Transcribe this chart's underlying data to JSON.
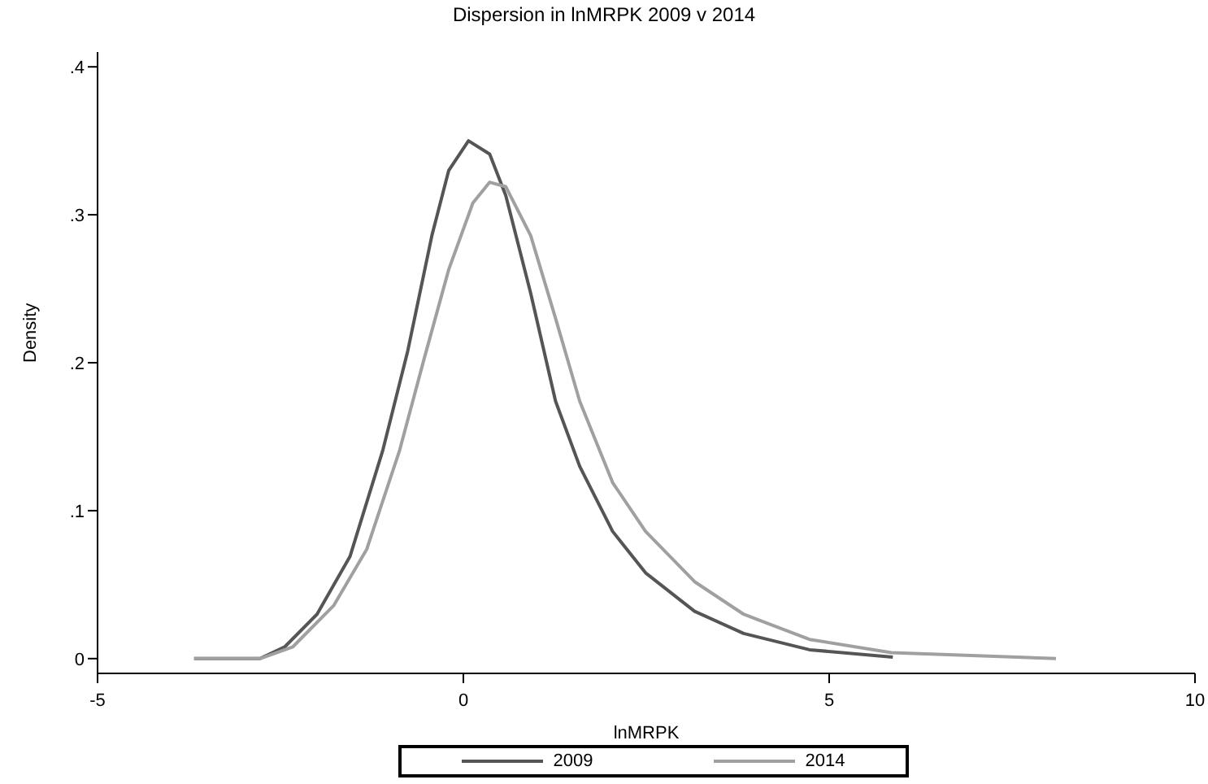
{
  "chart_data": {
    "type": "line",
    "title": "Dispersion in lnMRPK 2009 v 2014",
    "xlabel": "lnMRPK",
    "ylabel": "Density",
    "series": [
      {
        "name": "2009",
        "color": "#555555",
        "x": [
          -3.68,
          -2.78,
          -2.44,
          -2.0,
          -1.55,
          -1.1,
          -0.76,
          -0.43,
          -0.2,
          0.07,
          0.36,
          0.58,
          0.92,
          1.26,
          1.59,
          2.04,
          2.49,
          3.16,
          3.83,
          4.73,
          5.87
        ],
        "values": [
          0,
          0,
          0.008,
          0.03,
          0.069,
          0.141,
          0.208,
          0.286,
          0.33,
          0.35,
          0.341,
          0.313,
          0.247,
          0.174,
          0.13,
          0.086,
          0.058,
          0.032,
          0.017,
          0.006,
          0.001
        ]
      },
      {
        "name": "2014",
        "color": "#a0a0a0",
        "x": [
          -3.68,
          -2.78,
          -2.33,
          -1.77,
          -1.32,
          -0.87,
          -0.54,
          -0.2,
          0.13,
          0.36,
          0.58,
          0.92,
          1.26,
          1.59,
          2.04,
          2.49,
          3.16,
          3.83,
          4.73,
          5.85,
          8.1
        ],
        "values": [
          0,
          0,
          0.008,
          0.036,
          0.074,
          0.141,
          0.202,
          0.263,
          0.308,
          0.322,
          0.319,
          0.286,
          0.23,
          0.174,
          0.119,
          0.086,
          0.052,
          0.03,
          0.013,
          0.004,
          0
        ]
      }
    ],
    "xlim": [
      -5,
      10
    ],
    "xticks": [
      -5,
      0,
      5,
      10
    ],
    "ylim": [
      -0.01,
      0.41
    ],
    "yticks": [
      {
        "value": 0,
        "label": "0"
      },
      {
        "value": 0.1,
        "label": ".1"
      },
      {
        "value": 0.2,
        "label": ".2"
      },
      {
        "value": 0.3,
        "label": ".3"
      },
      {
        "value": 0.4,
        "label": ".4"
      }
    ],
    "grid": false,
    "legend": "bottom",
    "marker": "none",
    "line_style": "solid"
  }
}
